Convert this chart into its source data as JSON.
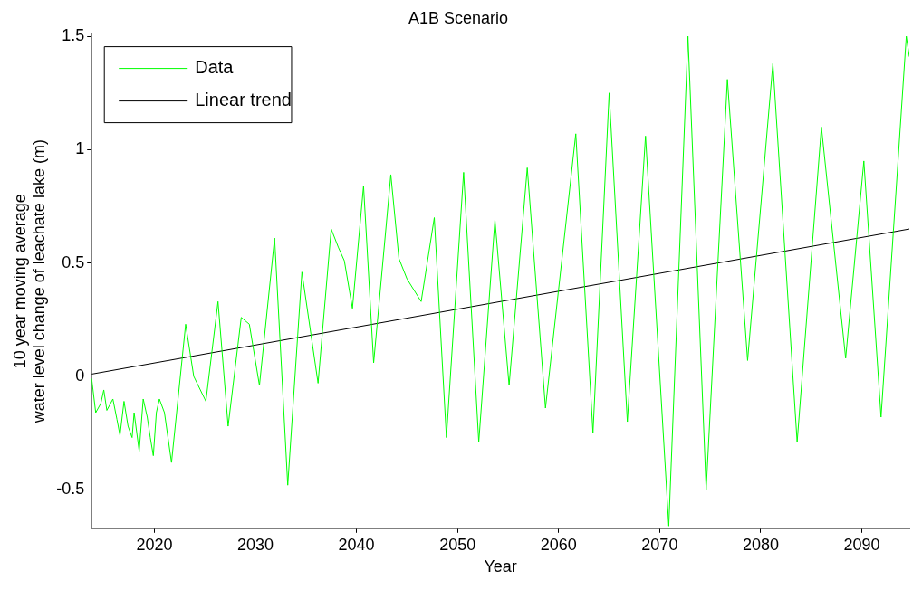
{
  "chart_data": {
    "type": "line",
    "title": "A1B Scenario",
    "xlabel": "Year",
    "ylabel": "10 year moving average\nwater level change of leachate lake (m)",
    "xlim": [
      2013.8,
      2094.7
    ],
    "xticks": [
      2020,
      2030,
      2040,
      2050,
      2060,
      2070,
      2080,
      2090
    ],
    "ylim": [
      -0.67,
      1.51
    ],
    "yticks": [
      -0.5,
      0,
      0.5,
      1,
      1.5
    ],
    "grid": false,
    "legend": "top left",
    "marker": "none",
    "line_style": "solid",
    "series": [
      {
        "name": "Data",
        "color": "#00ff00",
        "x": [
          2013.8,
          2014.2,
          2014.7,
          2015.0,
          2015.3,
          2015.9,
          2016.3,
          2016.6,
          2017.0,
          2017.4,
          2017.8,
          2018.0,
          2018.5,
          2018.9,
          2019.3,
          2019.6,
          2019.9,
          2020.2,
          2020.5,
          2021.0,
          2021.7,
          2023.1,
          2023.9,
          2025.1,
          2026.3,
          2027.3,
          2028.6,
          2029.4,
          2030.4,
          2031.9,
          2033.2,
          2034.6,
          2036.2,
          2037.5,
          2038.2,
          2038.8,
          2039.6,
          2040.7,
          2041.7,
          2043.4,
          2044.2,
          2045.0,
          2046.4,
          2047.7,
          2048.9,
          2050.6,
          2052.1,
          2053.7,
          2055.1,
          2056.9,
          2058.7,
          2061.7,
          2063.4,
          2065.0,
          2066.8,
          2068.6,
          2070.9,
          2072.8,
          2074.6,
          2076.7,
          2078.7,
          2081.2,
          2083.6,
          2086.0,
          2088.4,
          2090.2,
          2091.9,
          2094.4,
          2094.7
        ],
        "values": [
          -0.01,
          -0.16,
          -0.12,
          -0.06,
          -0.15,
          -0.1,
          -0.19,
          -0.26,
          -0.11,
          -0.22,
          -0.27,
          -0.16,
          -0.33,
          -0.1,
          -0.18,
          -0.27,
          -0.35,
          -0.16,
          -0.1,
          -0.16,
          -0.38,
          0.23,
          0.0,
          -0.11,
          0.33,
          -0.22,
          0.26,
          0.23,
          -0.04,
          0.61,
          -0.48,
          0.46,
          -0.03,
          0.65,
          0.57,
          0.51,
          0.3,
          0.84,
          0.06,
          0.89,
          0.52,
          0.43,
          0.33,
          0.7,
          -0.27,
          0.9,
          -0.29,
          0.69,
          -0.04,
          0.92,
          -0.14,
          1.07,
          -0.25,
          1.25,
          -0.2,
          1.06,
          -0.66,
          1.5,
          -0.5,
          1.31,
          0.07,
          1.38,
          -0.29,
          1.1,
          0.08,
          0.95,
          -0.18,
          1.5,
          1.41
        ]
      },
      {
        "name": "Linear trend",
        "color": "#000000",
        "x": [
          2013.8,
          2094.7
        ],
        "values": [
          0.01,
          0.65
        ]
      }
    ]
  }
}
